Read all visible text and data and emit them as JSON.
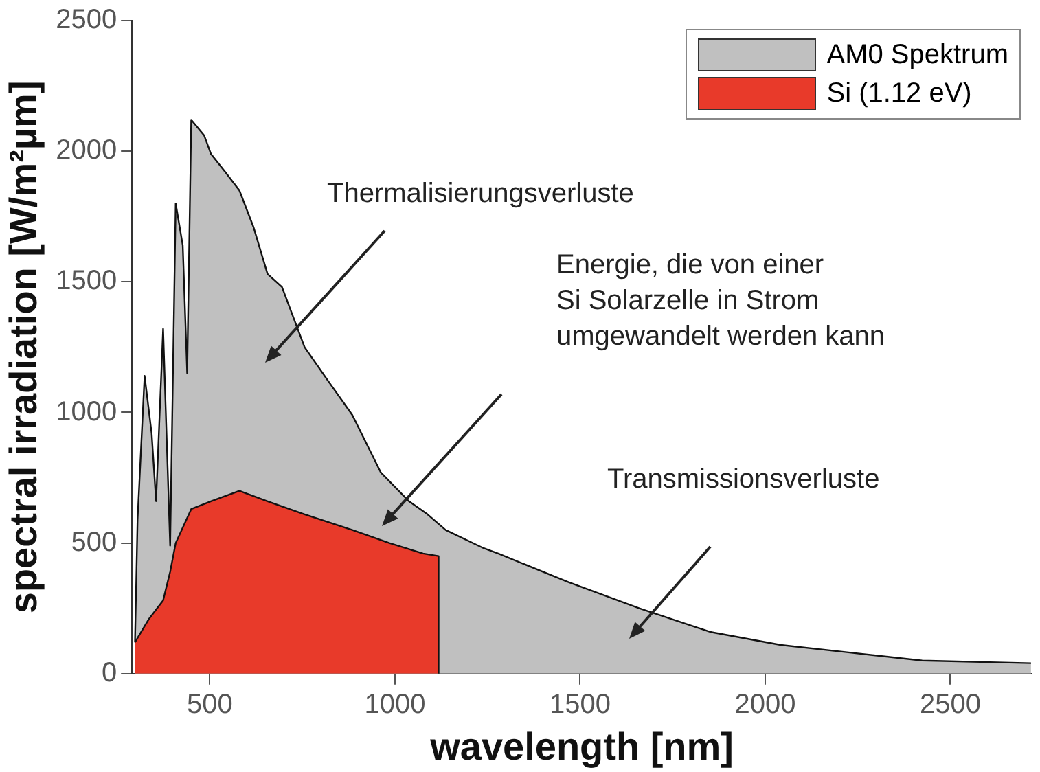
{
  "chart_data": {
    "type": "area",
    "xlabel": "wavelength [nm]",
    "ylabel": "spectral irradiation [W/m²µm]",
    "xlim": [
      290,
      2720
    ],
    "xticks": [
      500,
      1000,
      1500,
      2000,
      2500
    ],
    "ylim": [
      0,
      2500
    ],
    "yticks": [
      0,
      500,
      1000,
      1500,
      2000,
      2500
    ],
    "grid": false,
    "legend": "top right",
    "marker": "none",
    "annotations": [
      "Thermalisierungsverluste",
      "Energie, die von einer\nSi Solarzelle in Strom\numgewandelt werden kann",
      "Transmissionsverluste"
    ],
    "series": [
      {
        "name": "AM0 Spektrum",
        "color": "#c0c0c0",
        "x": [
          298,
          305,
          324,
          343,
          355,
          374,
          393,
          408,
          427,
          439,
          450,
          485,
          503,
          542,
          580,
          618,
          656,
          695,
          756,
          820,
          885,
          962,
          1038,
          1088,
          1137,
          1240,
          1279,
          1469,
          1660,
          1851,
          2042,
          2233,
          2424,
          2718
        ],
        "values": [
          120,
          590,
          1140,
          920,
          660,
          1320,
          490,
          1800,
          1640,
          1150,
          2120,
          2060,
          1990,
          1920,
          1850,
          1710,
          1530,
          1480,
          1250,
          1120,
          990,
          770,
          660,
          610,
          550,
          480,
          460,
          350,
          250,
          160,
          110,
          80,
          50,
          40
        ]
      },
      {
        "name": "Si (1.12 eV)",
        "color": "#e83a2a",
        "x": [
          298,
          336,
          374,
          393,
          408,
          450,
          503,
          580,
          656,
          756,
          885,
          985,
          1076,
          1118,
          1118
        ],
        "values": [
          120,
          210,
          280,
          390,
          500,
          630,
          660,
          700,
          660,
          610,
          550,
          500,
          460,
          450,
          0
        ]
      }
    ]
  }
}
